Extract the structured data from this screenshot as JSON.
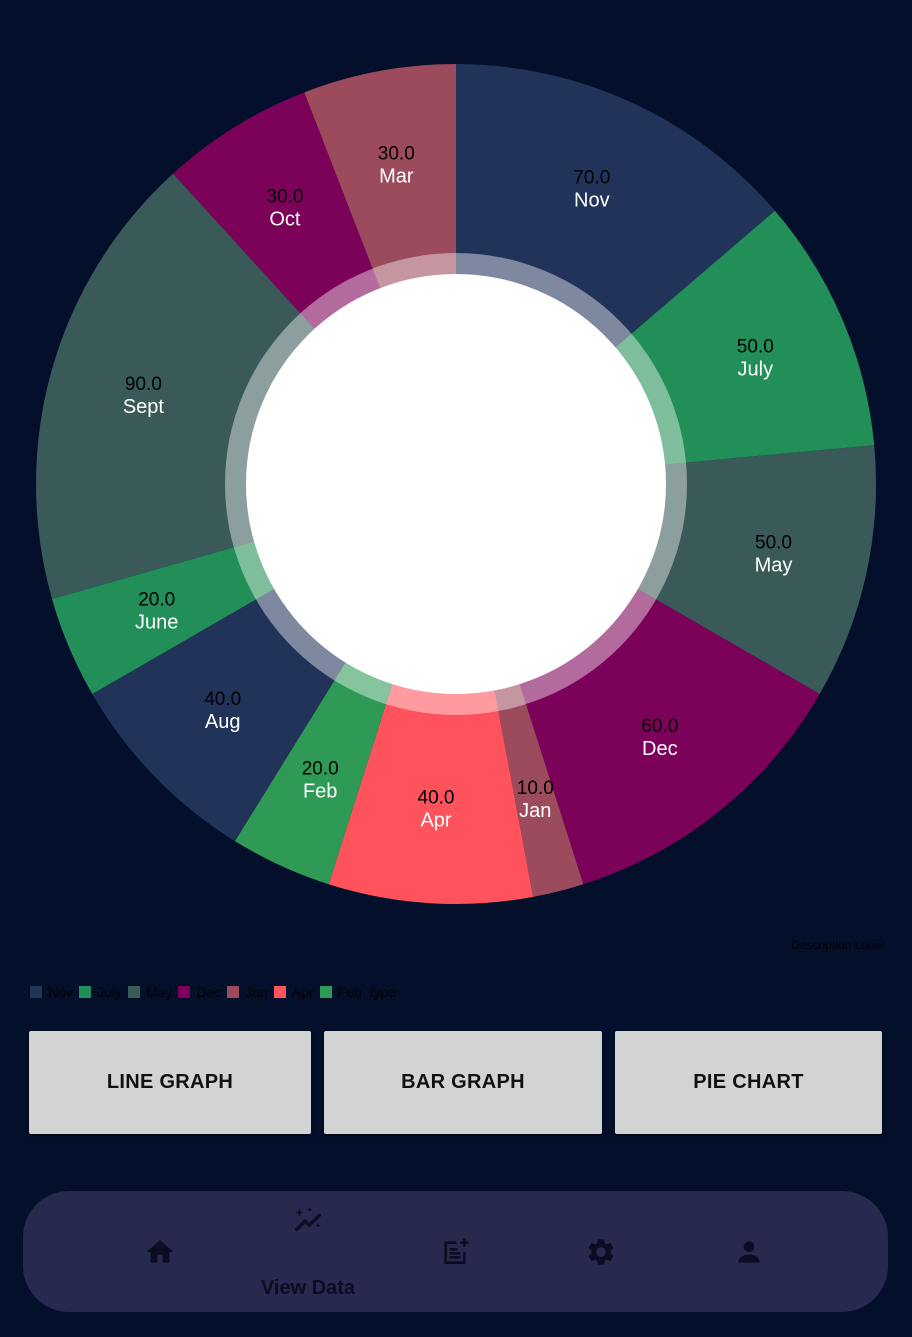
{
  "chart_data": {
    "type": "pie",
    "donut": true,
    "slices": [
      {
        "label": "Nov",
        "value": 70,
        "value_text": "70.0",
        "color": "#213358"
      },
      {
        "label": "July",
        "value": 50,
        "value_text": "50.0",
        "color": "#218f57"
      },
      {
        "label": "May",
        "value": 50,
        "value_text": "50.0",
        "color": "#3a5a59"
      },
      {
        "label": "Dec",
        "value": 60,
        "value_text": "60.0",
        "color": "#7c0159"
      },
      {
        "label": "Jan",
        "value": 10,
        "value_text": "10.0",
        "color": "#9b4b5c"
      },
      {
        "label": "Apr",
        "value": 40,
        "value_text": "40.0",
        "color": "#fe525c"
      },
      {
        "label": "Feb",
        "value": 20,
        "value_text": "20.0",
        "color": "#2e9a56"
      },
      {
        "label": "Aug",
        "value": 40,
        "value_text": "40.0",
        "color": "#213358"
      },
      {
        "label": "June",
        "value": 20,
        "value_text": "20.0",
        "color": "#218f57"
      },
      {
        "label": "Sept",
        "value": 90,
        "value_text": "90.0",
        "color": "#3a5a59"
      },
      {
        "label": "Oct",
        "value": 30,
        "value_text": "30.0",
        "color": "#7c0159"
      },
      {
        "label": "Mar",
        "value": 30,
        "value_text": "30.0",
        "color": "#9b4b5c"
      }
    ],
    "description_label": "Description Label",
    "legend": {
      "placement": "bottom-left",
      "entries": [
        {
          "label": "Nov",
          "color": "#213358"
        },
        {
          "label": "July",
          "color": "#218f57"
        },
        {
          "label": "May",
          "color": "#3a5a59"
        },
        {
          "label": "Dec",
          "color": "#7c0159"
        },
        {
          "label": "Jan",
          "color": "#9b4b5c"
        },
        {
          "label": "Apr",
          "color": "#fe525c"
        },
        {
          "label": "Feb",
          "color": "#2e9a56"
        }
      ],
      "dataset_label": "type"
    }
  },
  "buttons": {
    "line_graph": "LINE GRAPH",
    "bar_graph": "BAR GRAPH",
    "pie_chart": "PIE CHART"
  },
  "bottom_nav": {
    "items": [
      {
        "icon": "home-icon"
      },
      {
        "icon": "view-data-icon",
        "label": "View Data"
      },
      {
        "icon": "add-note-icon"
      },
      {
        "icon": "settings-icon"
      },
      {
        "icon": "profile-icon"
      }
    ]
  },
  "colors": {
    "background": "#030f2b",
    "button": "#d2d3d3",
    "nav_bar": "#28294e"
  }
}
